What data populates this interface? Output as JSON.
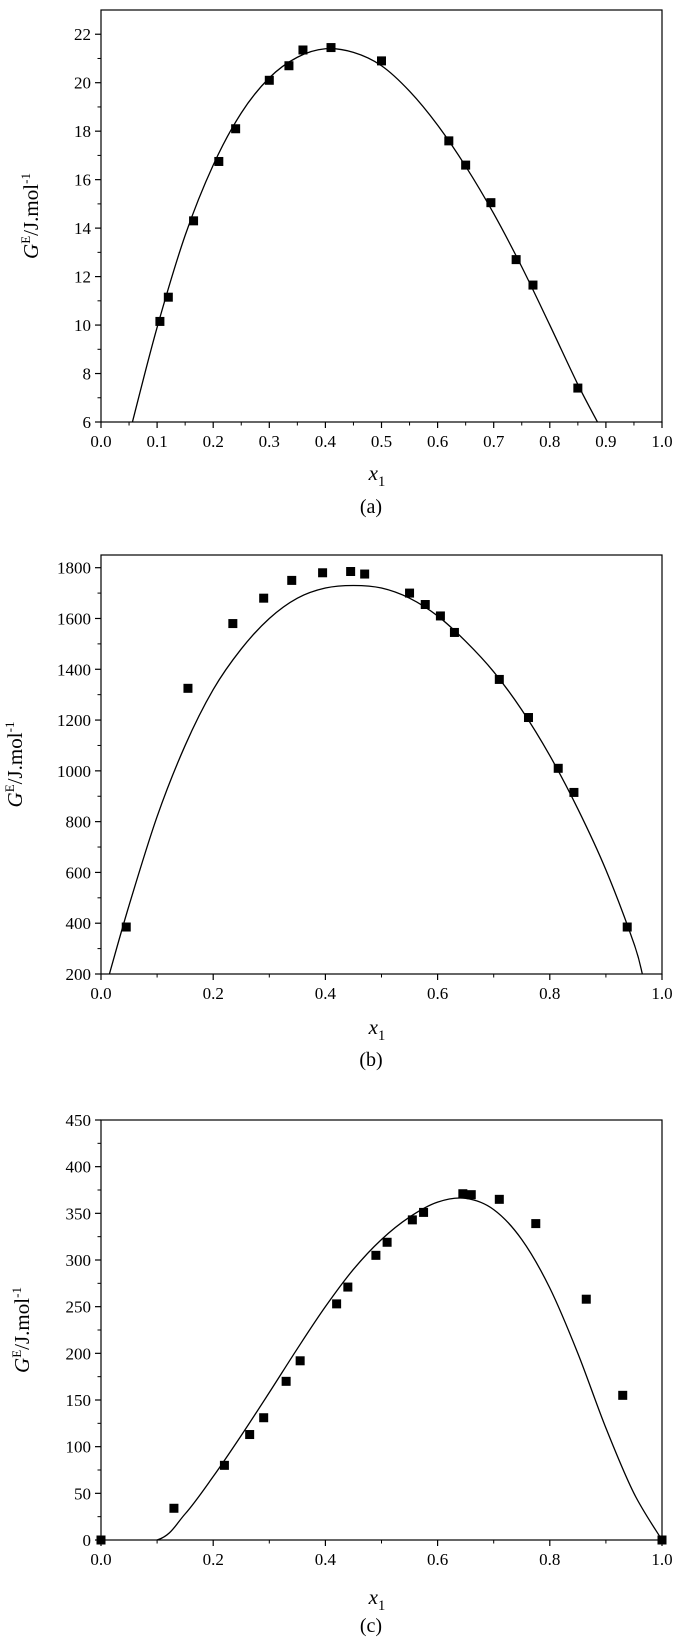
{
  "chart_data": [
    {
      "type": "scatter",
      "caption": "(a)",
      "xlabel": {
        "main": "x",
        "sub": "1"
      },
      "ylabel": {
        "main": "G",
        "sup": "E",
        "rest": "/J.mol",
        "sup2": "-1"
      },
      "xlim": [
        0,
        1.0
      ],
      "ylim": [
        6,
        23
      ],
      "xticks": [
        0,
        0.1,
        0.2,
        0.3,
        0.4,
        0.5,
        0.6,
        0.7,
        0.8,
        0.9,
        1.0
      ],
      "xtick_labels": [
        "0.0",
        "0.1",
        "0.2",
        "0.3",
        "0.4",
        "0.5",
        "0.6",
        "0.7",
        "0.8",
        "0.9",
        "1.0"
      ],
      "yticks": [
        6,
        8,
        10,
        12,
        14,
        16,
        18,
        20,
        22
      ],
      "ytick_labels": [
        "6",
        "8",
        "10",
        "12",
        "14",
        "16",
        "18",
        "20",
        "22"
      ],
      "points": [
        [
          0.105,
          10.15
        ],
        [
          0.12,
          11.15
        ],
        [
          0.165,
          14.3
        ],
        [
          0.21,
          16.75
        ],
        [
          0.24,
          18.1
        ],
        [
          0.3,
          20.1
        ],
        [
          0.335,
          20.7
        ],
        [
          0.36,
          21.35
        ],
        [
          0.41,
          21.45
        ],
        [
          0.5,
          20.9
        ],
        [
          0.62,
          17.6
        ],
        [
          0.65,
          16.6
        ],
        [
          0.695,
          15.05
        ],
        [
          0.74,
          12.7
        ],
        [
          0.77,
          11.65
        ],
        [
          0.85,
          7.4
        ]
      ],
      "fit_curve": [
        [
          0.056,
          6.0
        ],
        [
          0.1,
          9.9
        ],
        [
          0.15,
          13.7
        ],
        [
          0.2,
          16.6
        ],
        [
          0.25,
          18.75
        ],
        [
          0.3,
          20.2
        ],
        [
          0.35,
          21.05
        ],
        [
          0.4,
          21.4
        ],
        [
          0.45,
          21.25
        ],
        [
          0.5,
          20.7
        ],
        [
          0.55,
          19.65
        ],
        [
          0.6,
          18.25
        ],
        [
          0.65,
          16.55
        ],
        [
          0.7,
          14.6
        ],
        [
          0.75,
          12.4
        ],
        [
          0.8,
          10.0
        ],
        [
          0.85,
          7.55
        ],
        [
          0.885,
          6.0
        ]
      ]
    },
    {
      "type": "scatter",
      "caption": "(b)",
      "xlabel": {
        "main": "x",
        "sub": "1"
      },
      "ylabel": {
        "main": "G",
        "sup": "E",
        "rest": "/J.mol",
        "sup2": "-1"
      },
      "xlim": [
        0,
        1.0
      ],
      "ylim": [
        200,
        1850
      ],
      "xticks": [
        0,
        0.2,
        0.4,
        0.6,
        0.8,
        1.0
      ],
      "xtick_labels": [
        "0.0",
        "0.2",
        "0.4",
        "0.6",
        "0.8",
        "1.0"
      ],
      "yticks": [
        200,
        400,
        600,
        800,
        1000,
        1200,
        1400,
        1600,
        1800
      ],
      "ytick_labels": [
        "200",
        "400",
        "600",
        "800",
        "1000",
        "1200",
        "1400",
        "1600",
        "1800"
      ],
      "points": [
        [
          0.045,
          385
        ],
        [
          0.155,
          1325
        ],
        [
          0.235,
          1580
        ],
        [
          0.29,
          1680
        ],
        [
          0.34,
          1750
        ],
        [
          0.395,
          1780
        ],
        [
          0.445,
          1785
        ],
        [
          0.47,
          1775
        ],
        [
          0.55,
          1700
        ],
        [
          0.578,
          1655
        ],
        [
          0.605,
          1610
        ],
        [
          0.63,
          1545
        ],
        [
          0.71,
          1360
        ],
        [
          0.762,
          1210
        ],
        [
          0.815,
          1010
        ],
        [
          0.843,
          915
        ],
        [
          0.938,
          385
        ]
      ],
      "fit_curve": [
        [
          0.015,
          200
        ],
        [
          0.05,
          470
        ],
        [
          0.1,
          820
        ],
        [
          0.15,
          1100
        ],
        [
          0.2,
          1320
        ],
        [
          0.25,
          1480
        ],
        [
          0.3,
          1600
        ],
        [
          0.35,
          1680
        ],
        [
          0.4,
          1720
        ],
        [
          0.45,
          1730
        ],
        [
          0.5,
          1720
        ],
        [
          0.55,
          1680
        ],
        [
          0.6,
          1610
        ],
        [
          0.65,
          1510
        ],
        [
          0.7,
          1390
        ],
        [
          0.75,
          1240
        ],
        [
          0.8,
          1060
        ],
        [
          0.85,
          850
        ],
        [
          0.9,
          610
        ],
        [
          0.95,
          320
        ],
        [
          0.965,
          200
        ]
      ]
    },
    {
      "type": "scatter",
      "caption": "(c)",
      "xlabel": {
        "main": "x",
        "sub": "1"
      },
      "ylabel": {
        "main": "G",
        "sup": "E",
        "rest": "/J.mol",
        "sup2": "-1"
      },
      "xlim": [
        0,
        1.0
      ],
      "ylim": [
        0,
        450
      ],
      "xticks": [
        0,
        0.2,
        0.4,
        0.6,
        0.8,
        1.0
      ],
      "xtick_labels": [
        "0.0",
        "0.2",
        "0.4",
        "0.6",
        "0.8",
        "1.0"
      ],
      "yticks": [
        0,
        50,
        100,
        150,
        200,
        250,
        300,
        350,
        400,
        450
      ],
      "ytick_labels": [
        "0",
        "50",
        "100",
        "150",
        "200",
        "250",
        "300",
        "350",
        "400",
        "450"
      ],
      "points": [
        [
          0.0,
          0
        ],
        [
          0.13,
          34
        ],
        [
          0.22,
          80
        ],
        [
          0.265,
          113
        ],
        [
          0.29,
          131
        ],
        [
          0.33,
          170
        ],
        [
          0.355,
          192
        ],
        [
          0.42,
          253
        ],
        [
          0.44,
          271
        ],
        [
          0.49,
          305
        ],
        [
          0.51,
          319
        ],
        [
          0.555,
          343
        ],
        [
          0.575,
          351
        ],
        [
          0.645,
          371
        ],
        [
          0.66,
          370
        ],
        [
          0.71,
          365
        ],
        [
          0.775,
          339
        ],
        [
          0.865,
          258
        ],
        [
          0.93,
          155
        ],
        [
          1.0,
          0
        ]
      ],
      "fit_curve": [
        [
          0.0,
          0
        ],
        [
          0.1,
          0
        ],
        [
          0.15,
          28
        ],
        [
          0.2,
          68
        ],
        [
          0.25,
          112
        ],
        [
          0.3,
          158
        ],
        [
          0.35,
          205
        ],
        [
          0.4,
          250
        ],
        [
          0.45,
          290
        ],
        [
          0.5,
          322
        ],
        [
          0.55,
          346
        ],
        [
          0.6,
          362
        ],
        [
          0.65,
          366
        ],
        [
          0.7,
          354
        ],
        [
          0.75,
          322
        ],
        [
          0.8,
          270
        ],
        [
          0.85,
          200
        ],
        [
          0.9,
          120
        ],
        [
          0.95,
          50
        ],
        [
          1.0,
          0
        ]
      ]
    }
  ]
}
